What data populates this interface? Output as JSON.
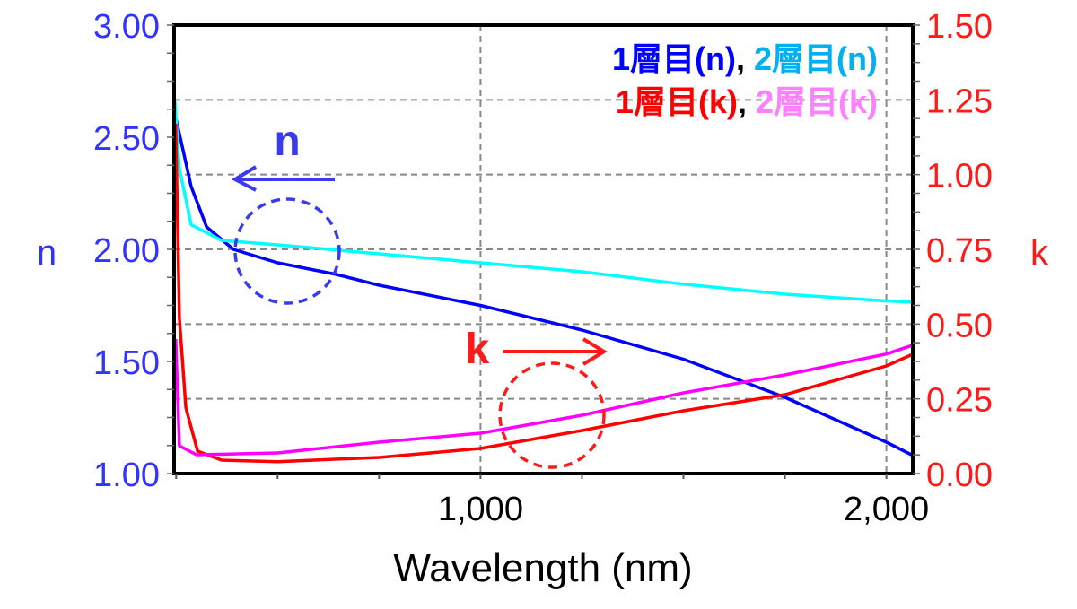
{
  "chart_data": {
    "type": "line",
    "xlabel": "Wavelength (nm)",
    "ylabel_left": "n",
    "ylabel_right": "k",
    "xlim": [
      245,
      2065
    ],
    "ylim_left": [
      1.0,
      3.0
    ],
    "ylim_right": [
      0.0,
      1.5
    ],
    "x_ticks": [
      1000,
      2000
    ],
    "x_tick_labels": [
      "1,000",
      "2,000"
    ],
    "y_left_tick_labels": [
      "3.00",
      "2.50",
      "2.00",
      "1.50",
      "1.00"
    ],
    "y_left_ticks": [
      3.0,
      2.5,
      2.0,
      1.5,
      1.0
    ],
    "y_right_tick_labels": [
      "1.50",
      "1.25",
      "1.00",
      "0.75",
      "0.50",
      "0.25",
      "0.00"
    ],
    "y_right_ticks": [
      1.5,
      1.25,
      1.0,
      0.75,
      0.5,
      0.25,
      0.0
    ],
    "grid": true,
    "legend_position": "top-right",
    "series": [
      {
        "name": "1層目(n)",
        "axis": "left",
        "color": "#0000ff",
        "legend_color": "#0000ff",
        "x": [
          250,
          287,
          325,
          391,
          500,
          640,
          750,
          1000,
          1250,
          1500,
          1750,
          2000,
          2066
        ],
        "y": [
          2.58,
          2.28,
          2.1,
          2.0,
          1.94,
          1.89,
          1.84,
          1.75,
          1.64,
          1.51,
          1.34,
          1.14,
          1.08
        ]
      },
      {
        "name": "2層目(n)",
        "axis": "left",
        "color": "#00ffff",
        "legend_color": "#00b0f0",
        "x": [
          247,
          258,
          287,
          362,
          500,
          750,
          1000,
          1250,
          1500,
          1750,
          2000,
          2066
        ],
        "y": [
          2.66,
          2.36,
          2.11,
          2.04,
          2.02,
          1.98,
          1.94,
          1.9,
          1.845,
          1.8,
          1.77,
          1.765
        ]
      },
      {
        "name": "1層目(k)",
        "axis": "right",
        "color": "#ff0000",
        "legend_color": "#ff0000",
        "x": [
          249,
          258,
          274,
          303,
          362,
          500,
          750,
          1000,
          1250,
          1500,
          1750,
          2000,
          2066
        ],
        "y": [
          1.17,
          0.52,
          0.22,
          0.075,
          0.045,
          0.04,
          0.054,
          0.084,
          0.144,
          0.21,
          0.264,
          0.36,
          0.4
        ]
      },
      {
        "name": "2層目(k)",
        "axis": "right",
        "color": "#ff00ff",
        "legend_color": "#ff80ff",
        "x": [
          249,
          258,
          300,
          500,
          750,
          1000,
          1250,
          1500,
          1750,
          2000,
          2066
        ],
        "y": [
          0.45,
          0.093,
          0.063,
          0.069,
          0.105,
          0.135,
          0.195,
          0.27,
          0.33,
          0.4,
          0.43
        ]
      }
    ],
    "annotations": [
      {
        "text": "n",
        "arrow": "left",
        "color": "#3a3aee"
      },
      {
        "text": "k",
        "arrow": "right",
        "color": "#ff1a1a"
      }
    ],
    "legend_separator": ","
  }
}
